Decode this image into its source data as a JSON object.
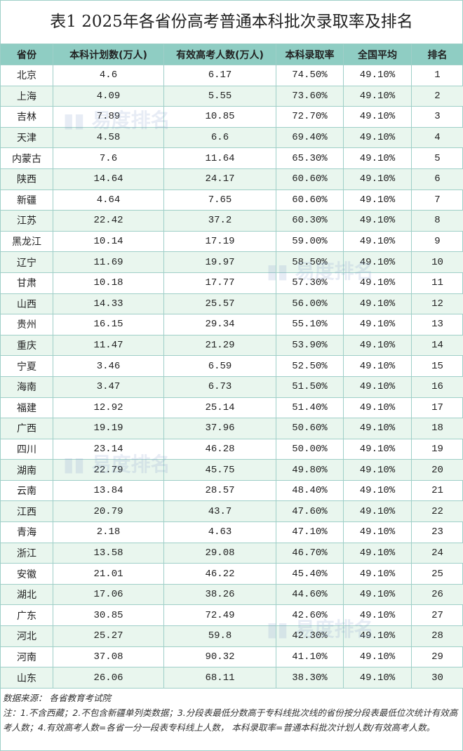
{
  "title": "表1  2025年各省份高考普通本科批次录取率及排名",
  "columns": [
    "省份",
    "本科计划数(万人)",
    "有效高考人数(万人)",
    "本科录取率",
    "全国平均",
    "排名"
  ],
  "rows": [
    [
      "北京",
      "4.6",
      "6.17",
      "74.50%",
      "49.10%",
      "1"
    ],
    [
      "上海",
      "4.09",
      "5.55",
      "73.60%",
      "49.10%",
      "2"
    ],
    [
      "吉林",
      "7.89",
      "10.85",
      "72.70%",
      "49.10%",
      "3"
    ],
    [
      "天津",
      "4.58",
      "6.6",
      "69.40%",
      "49.10%",
      "4"
    ],
    [
      "内蒙古",
      "7.6",
      "11.64",
      "65.30%",
      "49.10%",
      "5"
    ],
    [
      "陕西",
      "14.64",
      "24.17",
      "60.60%",
      "49.10%",
      "6"
    ],
    [
      "新疆",
      "4.64",
      "7.65",
      "60.60%",
      "49.10%",
      "7"
    ],
    [
      "江苏",
      "22.42",
      "37.2",
      "60.30%",
      "49.10%",
      "8"
    ],
    [
      "黑龙江",
      "10.14",
      "17.19",
      "59.00%",
      "49.10%",
      "9"
    ],
    [
      "辽宁",
      "11.69",
      "19.97",
      "58.50%",
      "49.10%",
      "10"
    ],
    [
      "甘肃",
      "10.18",
      "17.77",
      "57.30%",
      "49.10%",
      "11"
    ],
    [
      "山西",
      "14.33",
      "25.57",
      "56.00%",
      "49.10%",
      "12"
    ],
    [
      "贵州",
      "16.15",
      "29.34",
      "55.10%",
      "49.10%",
      "13"
    ],
    [
      "重庆",
      "11.47",
      "21.29",
      "53.90%",
      "49.10%",
      "14"
    ],
    [
      "宁夏",
      "3.46",
      "6.59",
      "52.50%",
      "49.10%",
      "15"
    ],
    [
      "海南",
      "3.47",
      "6.73",
      "51.50%",
      "49.10%",
      "16"
    ],
    [
      "福建",
      "12.92",
      "25.14",
      "51.40%",
      "49.10%",
      "17"
    ],
    [
      "广西",
      "19.19",
      "37.96",
      "50.60%",
      "49.10%",
      "18"
    ],
    [
      "四川",
      "23.14",
      "46.28",
      "50.00%",
      "49.10%",
      "19"
    ],
    [
      "湖南",
      "22.79",
      "45.75",
      "49.80%",
      "49.10%",
      "20"
    ],
    [
      "云南",
      "13.84",
      "28.57",
      "48.40%",
      "49.10%",
      "21"
    ],
    [
      "江西",
      "20.79",
      "43.7",
      "47.60%",
      "49.10%",
      "22"
    ],
    [
      "青海",
      "2.18",
      "4.63",
      "47.10%",
      "49.10%",
      "23"
    ],
    [
      "浙江",
      "13.58",
      "29.08",
      "46.70%",
      "49.10%",
      "24"
    ],
    [
      "安徽",
      "21.01",
      "46.22",
      "45.40%",
      "49.10%",
      "25"
    ],
    [
      "湖北",
      "17.06",
      "38.26",
      "44.60%",
      "49.10%",
      "26"
    ],
    [
      "广东",
      "30.85",
      "72.49",
      "42.60%",
      "49.10%",
      "27"
    ],
    [
      "河北",
      "25.27",
      "59.8",
      "42.30%",
      "49.10%",
      "28"
    ],
    [
      "河南",
      "37.08",
      "90.32",
      "41.10%",
      "49.10%",
      "29"
    ],
    [
      "山东",
      "26.06",
      "68.11",
      "38.30%",
      "49.10%",
      "30"
    ]
  ],
  "footer": {
    "source": "数据来源：  各省教育考试院",
    "note": "注：1.不含西藏；2.不包含新疆单列类数据；3.分段表最低分数高于专科线批次线的省份按分段表最低位次统计有效高考人数；4.有效高考人数=各省一分一段表专科线上人数， 本科录取率=普通本科批次计划人数/有效高考人数。"
  },
  "watermark": "易度排名 EDU Ranking.cn",
  "colors": {
    "header_bg": "#8fcdc3",
    "alt_row_bg": "#e9f6ee",
    "border": "#9fcfc8"
  }
}
